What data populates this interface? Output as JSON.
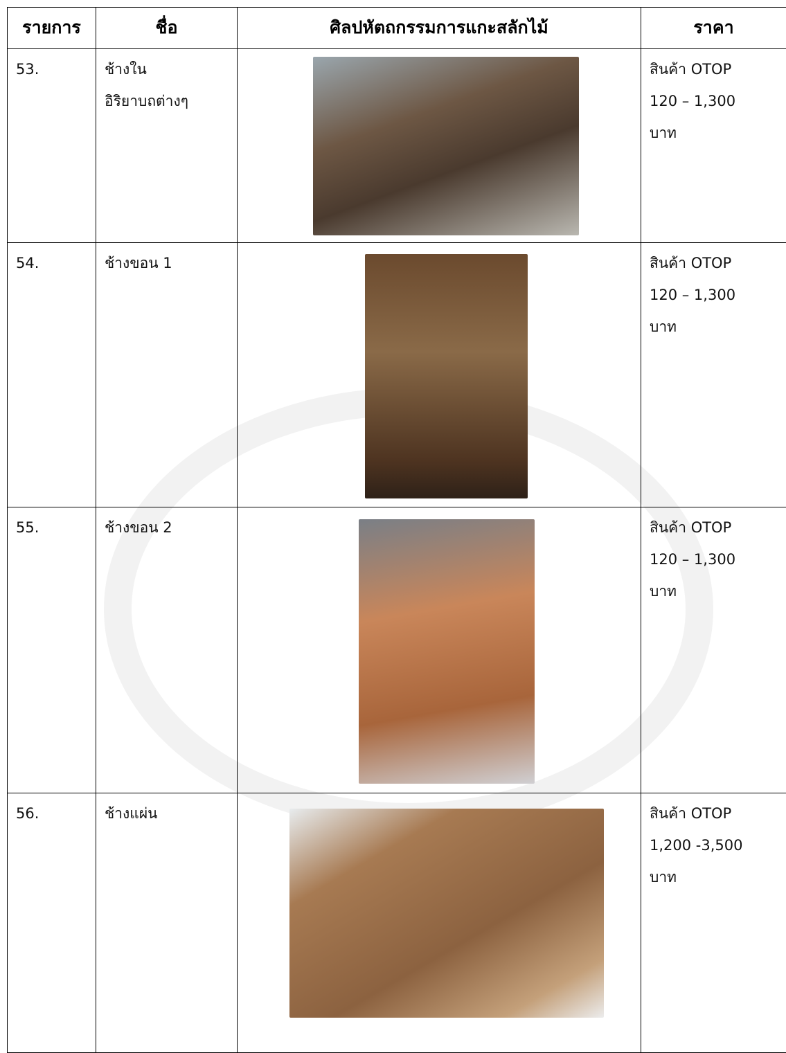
{
  "table": {
    "header": [
      "รายการ",
      "ชื่อ",
      "ศิลปหัตถกรรมการแกะสลักไม้",
      "ราคา"
    ],
    "rows": [
      {
        "number": "53.",
        "name": [
          "ช้างใน",
          "อิริยาบถต่างๆ"
        ],
        "price": [
          "สินค้า OTOP",
          "120 – 1,300",
          "บาท"
        ]
      },
      {
        "number": "54.",
        "name": [
          "ช้างขอน 1"
        ],
        "price": [
          "สินค้า OTOP",
          "120 – 1,300",
          "บาท"
        ]
      },
      {
        "number": "55.",
        "name": [
          "ช้างขอน 2"
        ],
        "price": [
          "สินค้า OTOP",
          "120 – 1,300",
          "บาท"
        ]
      },
      {
        "number": "56.",
        "name": [
          "ช้างแผ่น"
        ],
        "price": [
          "สินค้า OTOP",
          "1,200 -3,500",
          "บาท"
        ]
      }
    ]
  }
}
